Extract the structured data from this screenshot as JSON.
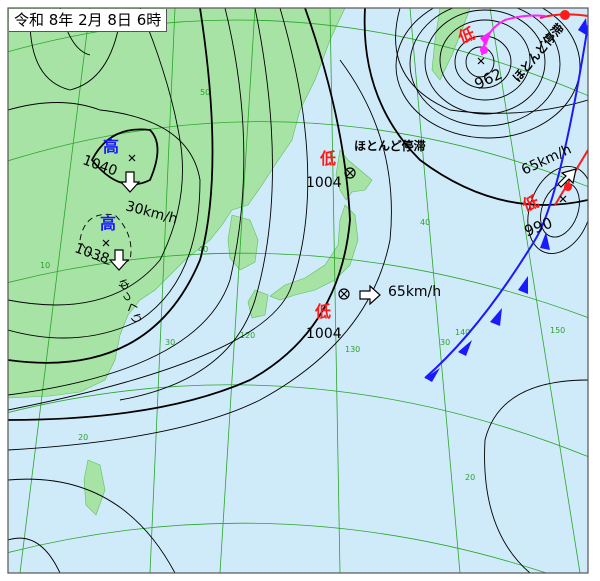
{
  "title": "令和 8年 2月 8日 6時",
  "colors": {
    "ocean": "#cfeaf8",
    "land": "#a6e3a4",
    "isobar": "#000000",
    "graticule": "#2aa52a",
    "high": "#1a1aff",
    "low": "#ff1a1a",
    "cold_front": "#1a1aff",
    "warm_front": "#ff1a1a",
    "occluded_front": "#ff22ff"
  },
  "systems": [
    {
      "type_label": "高",
      "pressure": "1040",
      "motion": "30km/h"
    },
    {
      "type_label": "高",
      "pressure": "1038",
      "motion": "ゆっくり"
    },
    {
      "type_label": "低",
      "pressure": "1004",
      "motion": "ほとんど停滞"
    },
    {
      "type_label": "低",
      "pressure": "1004",
      "motion": "65km/h"
    },
    {
      "type_label": "低",
      "pressure": "962",
      "motion": "ほとんど停滞"
    },
    {
      "type_label": "低",
      "pressure": "990",
      "motion": "65km/h"
    }
  ],
  "graticule_labels": [
    "50",
    "40",
    "30",
    "20",
    "120",
    "130",
    "140",
    "150",
    "40",
    "30",
    "20",
    "10"
  ]
}
